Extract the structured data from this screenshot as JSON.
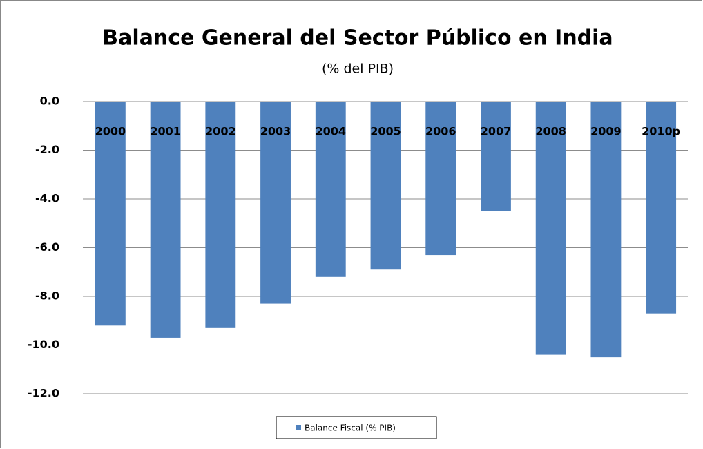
{
  "chart_data": {
    "type": "bar",
    "title": "Balance General del Sector Público en India",
    "subtitle": "(% del PIB)",
    "categories": [
      "2000",
      "2001",
      "2002",
      "2003",
      "2004",
      "2005",
      "2006",
      "2007",
      "2008",
      "2009",
      "2010p"
    ],
    "series": [
      {
        "name": "Balance Fiscal (% PIB)",
        "color": "#4f81bd",
        "values": [
          -9.2,
          -9.7,
          -9.3,
          -8.3,
          -7.2,
          -6.9,
          -6.3,
          -4.5,
          -10.4,
          -10.5,
          -8.7
        ]
      }
    ],
    "ylim": [
      -12,
      0
    ],
    "yticks": [
      {
        "value": 0,
        "label": "0.0"
      },
      {
        "value": -2,
        "label": "-2.0"
      },
      {
        "value": -4,
        "label": "-4.0"
      },
      {
        "value": -6,
        "label": "-6.0"
      },
      {
        "value": -8,
        "label": "-8.0"
      },
      {
        "value": -10,
        "label": "-10.0"
      },
      {
        "value": -12,
        "label": "-12.0"
      }
    ],
    "grid": true,
    "legend": "bottom"
  }
}
